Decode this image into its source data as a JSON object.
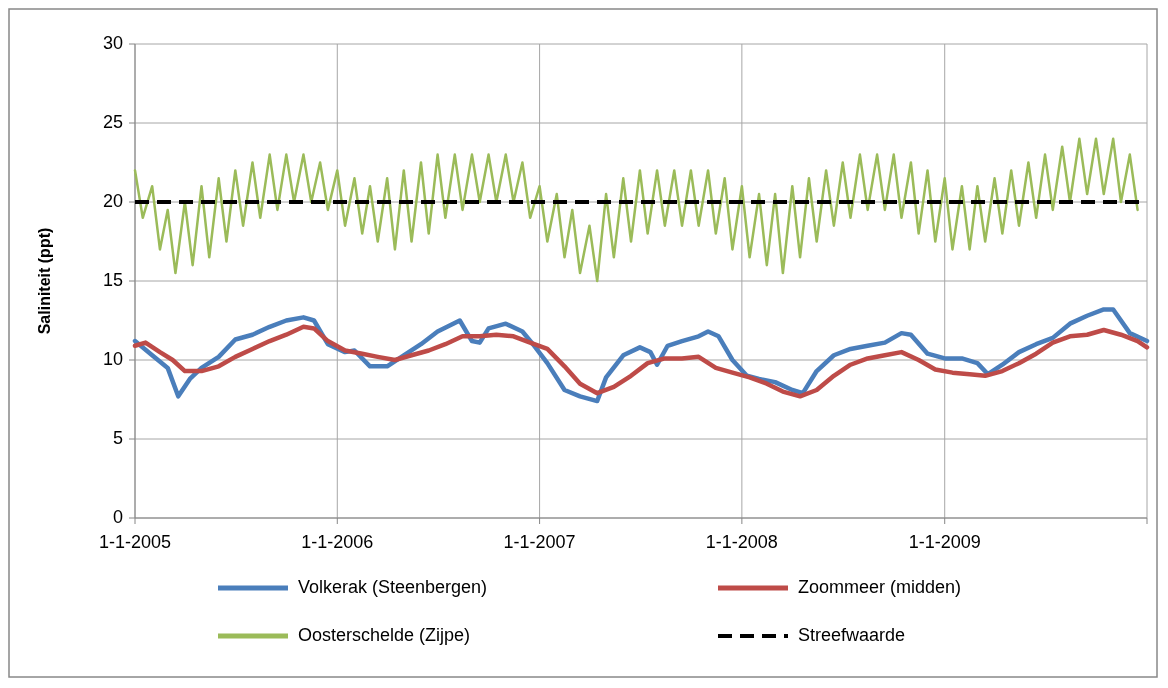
{
  "chart_data": {
    "type": "line",
    "ylabel": "Saliniteit (ppt)",
    "xlim": [
      "2005-01-01",
      "2010-01-01"
    ],
    "xticks": [
      {
        "value": "2005-01-01",
        "label": "1-1-2005"
      },
      {
        "value": "2006-01-01",
        "label": "1-1-2006"
      },
      {
        "value": "2007-01-01",
        "label": "1-1-2007"
      },
      {
        "value": "2008-01-01",
        "label": "1-1-2008"
      },
      {
        "value": "2009-01-01",
        "label": "1-1-2009"
      },
      {
        "value": "2010-01-01",
        "label": null
      }
    ],
    "ylim": [
      0,
      30
    ],
    "yticks": [
      0,
      5,
      10,
      15,
      20,
      25,
      30
    ],
    "grid": true,
    "legend": "bottom",
    "line_style": "solid",
    "ref_lines": [
      {
        "axis": "y",
        "value": 20,
        "label": "Streefwaarde",
        "color": "#000000",
        "line_style": "dashed"
      }
    ],
    "series": [
      {
        "name": "Oosterschelde (Zijpe)",
        "color": "#9bbb59",
        "x": [
          "2005-01-01",
          "2005-01-15",
          "2005-02-01",
          "2005-02-15",
          "2005-03-01",
          "2005-03-15",
          "2005-04-01",
          "2005-04-15",
          "2005-05-01",
          "2005-05-15",
          "2005-06-01",
          "2005-06-15",
          "2005-07-01",
          "2005-07-15",
          "2005-08-01",
          "2005-08-15",
          "2005-09-01",
          "2005-09-15",
          "2005-10-01",
          "2005-10-15",
          "2005-11-01",
          "2005-11-15",
          "2005-12-01",
          "2005-12-15",
          "2006-01-01",
          "2006-01-15",
          "2006-02-01",
          "2006-02-15",
          "2006-03-01",
          "2006-03-15",
          "2006-04-01",
          "2006-04-15",
          "2006-05-01",
          "2006-05-15",
          "2006-06-01",
          "2006-06-15",
          "2006-07-01",
          "2006-07-15",
          "2006-08-01",
          "2006-08-15",
          "2006-09-01",
          "2006-09-15",
          "2006-10-01",
          "2006-10-15",
          "2006-11-01",
          "2006-11-15",
          "2006-12-01",
          "2006-12-15",
          "2007-01-01",
          "2007-01-15",
          "2007-02-01",
          "2007-02-15",
          "2007-03-01",
          "2007-03-15",
          "2007-04-01",
          "2007-04-15",
          "2007-05-01",
          "2007-05-15",
          "2007-06-01",
          "2007-06-15",
          "2007-07-01",
          "2007-07-15",
          "2007-08-01",
          "2007-08-15",
          "2007-09-01",
          "2007-09-15",
          "2007-10-01",
          "2007-10-15",
          "2007-11-01",
          "2007-11-15",
          "2007-12-01",
          "2007-12-15",
          "2008-01-01",
          "2008-01-15",
          "2008-02-01",
          "2008-02-15",
          "2008-03-01",
          "2008-03-15",
          "2008-04-01",
          "2008-04-15",
          "2008-05-01",
          "2008-05-15",
          "2008-06-01",
          "2008-06-15",
          "2008-07-01",
          "2008-07-15",
          "2008-08-01",
          "2008-08-15",
          "2008-09-01",
          "2008-09-15",
          "2008-10-01",
          "2008-10-15",
          "2008-11-01",
          "2008-11-15",
          "2008-12-01",
          "2008-12-15",
          "2009-01-01",
          "2009-01-15",
          "2009-02-01",
          "2009-02-15",
          "2009-03-01",
          "2009-03-15",
          "2009-04-01",
          "2009-04-15",
          "2009-05-01",
          "2009-05-15",
          "2009-06-01",
          "2009-06-15",
          "2009-07-01",
          "2009-07-15",
          "2009-08-01",
          "2009-08-15",
          "2009-09-01",
          "2009-09-15",
          "2009-10-01",
          "2009-10-15",
          "2009-11-01",
          "2009-11-15",
          "2009-12-01",
          "2009-12-15"
        ],
        "values": [
          22,
          19,
          21,
          17,
          19.5,
          15.5,
          20,
          16,
          21,
          16.5,
          21.5,
          17.5,
          22,
          18.5,
          22.5,
          19,
          23,
          19.5,
          23,
          20,
          23,
          20,
          22.5,
          19.5,
          22,
          18.5,
          21.5,
          18,
          21,
          17.5,
          21.5,
          17,
          22,
          17.5,
          22.5,
          18,
          23,
          19,
          23,
          19.5,
          23,
          20,
          23,
          20,
          23,
          20,
          22.5,
          19,
          21,
          17.5,
          20.5,
          16.5,
          19.5,
          15.5,
          18.5,
          15,
          20.5,
          16.5,
          21.5,
          17.5,
          22,
          18,
          22,
          18.5,
          22,
          18.5,
          22,
          18.5,
          22,
          18,
          21.5,
          17,
          21,
          16.5,
          20.5,
          16,
          20.5,
          15.5,
          21,
          16.5,
          21.5,
          17.5,
          22,
          18.5,
          22.5,
          19,
          23,
          19.5,
          23,
          19.5,
          23,
          19,
          22.5,
          18,
          22,
          17.5,
          21.5,
          17,
          21,
          17,
          21,
          17.5,
          21.5,
          18,
          22,
          18.5,
          22.5,
          19,
          23,
          19.5,
          23.5,
          20,
          24,
          20.5,
          24,
          20.5,
          24,
          20,
          23,
          19.5
        ]
      },
      {
        "name": "Volkerak (Steenbergen)",
        "color": "#4a7ebb",
        "x": [
          "2005-01-01",
          "2005-02-01",
          "2005-03-01",
          "2005-03-20",
          "2005-04-10",
          "2005-05-01",
          "2005-06-01",
          "2005-07-01",
          "2005-08-01",
          "2005-09-01",
          "2005-10-01",
          "2005-11-01",
          "2005-11-20",
          "2005-12-15",
          "2006-01-15",
          "2006-02-01",
          "2006-03-01",
          "2006-04-01",
          "2006-05-01",
          "2006-06-01",
          "2006-07-01",
          "2006-08-10",
          "2006-09-01",
          "2006-09-15",
          "2006-10-01",
          "2006-11-01",
          "2006-12-01",
          "2006-12-20",
          "2007-01-15",
          "2007-02-15",
          "2007-03-15",
          "2007-04-15",
          "2007-05-01",
          "2007-06-01",
          "2007-07-01",
          "2007-07-20",
          "2007-08-01",
          "2007-08-20",
          "2007-09-15",
          "2007-10-15",
          "2007-11-01",
          "2007-11-20",
          "2007-12-15",
          "2008-01-10",
          "2008-02-01",
          "2008-03-01",
          "2008-04-01",
          "2008-04-20",
          "2008-05-15",
          "2008-06-15",
          "2008-07-15",
          "2008-08-15",
          "2008-09-15",
          "2008-10-15",
          "2008-11-01",
          "2008-12-01",
          "2009-01-01",
          "2009-02-01",
          "2009-03-01",
          "2009-03-20",
          "2009-04-15",
          "2009-05-15",
          "2009-06-15",
          "2009-07-15",
          "2009-08-15",
          "2009-09-15",
          "2009-10-15",
          "2009-11-01",
          "2009-12-01",
          "2010-01-01"
        ],
        "values": [
          11.2,
          10.3,
          9.5,
          7.7,
          8.8,
          9.5,
          10.2,
          11.3,
          11.6,
          12.1,
          12.5,
          12.7,
          12.5,
          11,
          10.5,
          10.6,
          9.6,
          9.6,
          10.3,
          11,
          11.8,
          12.5,
          11.2,
          11.1,
          12,
          12.3,
          11.8,
          11,
          9.8,
          8.1,
          7.7,
          7.4,
          8.9,
          10.3,
          10.8,
          10.5,
          9.7,
          10.9,
          11.2,
          11.5,
          11.8,
          11.5,
          10,
          9,
          8.8,
          8.6,
          8.1,
          7.9,
          9.3,
          10.3,
          10.7,
          10.9,
          11.1,
          11.7,
          11.6,
          10.4,
          10.1,
          10.1,
          9.8,
          9.1,
          9.7,
          10.5,
          11,
          11.4,
          12.3,
          12.8,
          13.2,
          13.2,
          11.7,
          11.2
        ]
      },
      {
        "name": "Zoommeer (midden)",
        "color": "#be4b48",
        "x": [
          "2005-01-01",
          "2005-01-20",
          "2005-02-15",
          "2005-03-10",
          "2005-04-01",
          "2005-05-01",
          "2005-06-01",
          "2005-07-01",
          "2005-08-01",
          "2005-09-01",
          "2005-10-01",
          "2005-11-01",
          "2005-11-20",
          "2005-12-15",
          "2006-01-15",
          "2006-02-15",
          "2006-03-15",
          "2006-04-15",
          "2006-05-15",
          "2006-06-15",
          "2006-07-15",
          "2006-08-15",
          "2006-09-15",
          "2006-10-15",
          "2006-11-15",
          "2006-12-15",
          "2007-01-15",
          "2007-02-15",
          "2007-03-15",
          "2007-04-15",
          "2007-05-15",
          "2007-06-15",
          "2007-07-15",
          "2007-08-15",
          "2007-09-15",
          "2007-10-15",
          "2007-11-15",
          "2007-12-15",
          "2008-01-15",
          "2008-02-15",
          "2008-03-15",
          "2008-04-15",
          "2008-05-15",
          "2008-06-15",
          "2008-07-15",
          "2008-08-15",
          "2008-09-15",
          "2008-10-15",
          "2008-11-15",
          "2008-12-15",
          "2009-01-15",
          "2009-02-15",
          "2009-03-15",
          "2009-04-15",
          "2009-05-15",
          "2009-06-15",
          "2009-07-15",
          "2009-08-15",
          "2009-09-15",
          "2009-10-15",
          "2009-11-15",
          "2009-12-15",
          "2010-01-01"
        ],
        "values": [
          10.9,
          11.1,
          10.5,
          10,
          9.3,
          9.3,
          9.6,
          10.2,
          10.7,
          11.2,
          11.6,
          12.1,
          12,
          11.2,
          10.6,
          10.4,
          10.2,
          10,
          10.3,
          10.6,
          11,
          11.5,
          11.5,
          11.6,
          11.5,
          11.1,
          10.7,
          9.6,
          8.5,
          7.9,
          8.3,
          9,
          9.8,
          10.1,
          10.1,
          10.2,
          9.5,
          9.2,
          8.9,
          8.5,
          8,
          7.7,
          8.1,
          9,
          9.7,
          10.1,
          10.3,
          10.5,
          10,
          9.4,
          9.2,
          9.1,
          9,
          9.3,
          9.8,
          10.4,
          11.1,
          11.5,
          11.6,
          11.9,
          11.6,
          11.2,
          10.8
        ]
      }
    ]
  }
}
